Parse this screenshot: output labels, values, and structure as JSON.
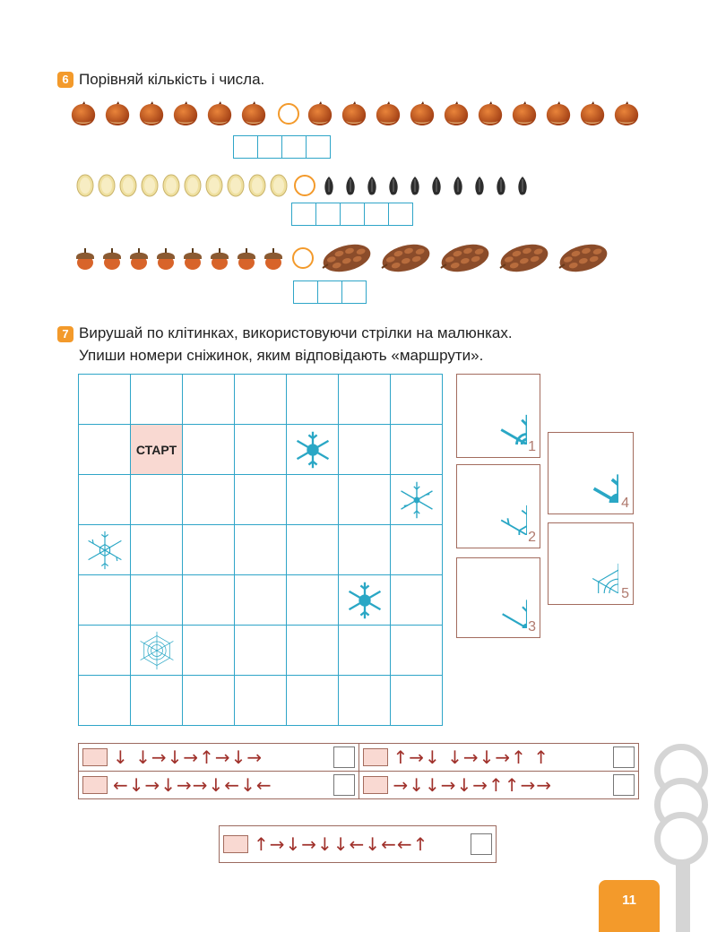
{
  "task6": {
    "number": "6",
    "text": "Порівняй кількість і числа."
  },
  "task7": {
    "number": "7",
    "line1": "Вирушай по клітинках, використовуючи стрілки на малюнках.",
    "line2": "Упиши номери сніжинок, яким відповідають «маршрути»."
  },
  "grid": {
    "start_label": "СТАРТ",
    "rows": 7,
    "cols": 7
  },
  "cards": [
    "1",
    "2",
    "3",
    "4",
    "5"
  ],
  "routes": [
    "↓ ↓→↓→↑→↓→",
    "↑→↓ ↓→↓→↑ ↑",
    "←↓→↓→→↓←↓←",
    "→↓↓→↓→↑↑→→",
    "↑→↓→↓↓←↓←←↑"
  ],
  "page_number": "11",
  "colors": {
    "accent": "#f39a2b",
    "grid": "#2fa5c8",
    "arrow": "#a0312b",
    "start_bg": "#f9d9d2"
  }
}
